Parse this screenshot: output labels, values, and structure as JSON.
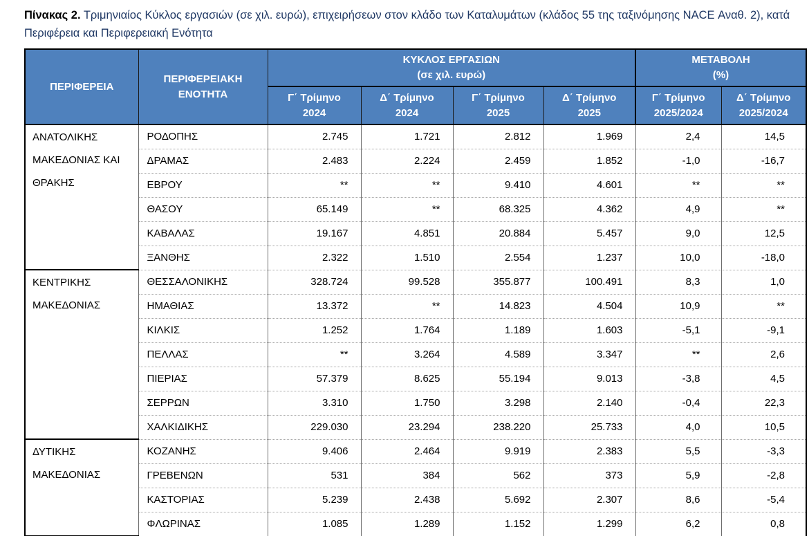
{
  "page": {
    "title_label": "Πίνακας 2.",
    "title_text": " Τριμηνιαίος Κύκλος εργασιών (σε χιλ. ευρώ), επιχειρήσεων στον κλάδο των Καταλυμάτων (κλάδος 55 της ταξινόμησης NACE Αναθ. 2), κατά Περιφέρεια και Περιφερειακή Ενότητα"
  },
  "colors": {
    "header_bg": "#4f81bd",
    "header_text": "#ffffff",
    "title_accent": "#1f3864",
    "outer_border": "#000000",
    "grid_line": "#6e6e6e",
    "row_separator": "#a8a8a8"
  },
  "table": {
    "headers": {
      "region": "ΠΕΡΙΦΕΡΕΙΑ",
      "unit": "ΠΕΡΙΦΕΡΕΙΑΚΗ ΕΝΟΤΗΤΑ",
      "turnover_group": {
        "line1": "ΚΥΚΛΟΣ ΕΡΓΑΣΙΩΝ",
        "line2": "(σε χιλ. ευρώ)"
      },
      "change_group": {
        "line1": "ΜΕΤΑΒΟΛΗ",
        "line2": "(%)"
      },
      "sub": [
        {
          "line1": "Γ΄ Τρίμηνο",
          "line2": "2024"
        },
        {
          "line1": "Δ΄ Τρίμηνο",
          "line2": "2024"
        },
        {
          "line1": "Γ΄ Τρίμηνο",
          "line2": "2025"
        },
        {
          "line1": "Δ΄ Τρίμηνο",
          "line2": "2025"
        },
        {
          "line1": "Γ΄ Τρίμηνο",
          "line2": "2025/2024"
        },
        {
          "line1": "Δ΄ Τρίμηνο",
          "line2": "2025/2024"
        }
      ]
    },
    "groups": [
      {
        "region": "ΑΝΑΤΟΛΙΚΗΣ ΜΑΚΕΔΟΝΙΑΣ ΚΑΙ ΘΡΑΚΗΣ",
        "rows": [
          {
            "unit": "ΡΟΔΟΠΗΣ",
            "values": [
              "2.745",
              "1.721",
              "2.812",
              "1.969",
              "2,4",
              "14,5"
            ]
          },
          {
            "unit": "ΔΡΑΜΑΣ",
            "values": [
              "2.483",
              "2.224",
              "2.459",
              "1.852",
              "-1,0",
              "-16,7"
            ]
          },
          {
            "unit": "ΕΒΡΟΥ",
            "values": [
              "**",
              "**",
              "9.410",
              "4.601",
              "**",
              "**"
            ]
          },
          {
            "unit": "ΘΑΣΟΥ",
            "values": [
              "65.149",
              "**",
              "68.325",
              "4.362",
              "4,9",
              "**"
            ]
          },
          {
            "unit": "ΚΑΒΑΛΑΣ",
            "values": [
              "19.167",
              "4.851",
              "20.884",
              "5.457",
              "9,0",
              "12,5"
            ]
          },
          {
            "unit": "ΞΑΝΘΗΣ",
            "values": [
              "2.322",
              "1.510",
              "2.554",
              "1.237",
              "10,0",
              "-18,0"
            ]
          }
        ]
      },
      {
        "region": "ΚΕΝΤΡΙΚΗΣ ΜΑΚΕΔΟΝΙΑΣ",
        "rows": [
          {
            "unit": "ΘΕΣΣΑΛΟΝΙΚΗΣ",
            "values": [
              "328.724",
              "99.528",
              "355.877",
              "100.491",
              "8,3",
              "1,0"
            ]
          },
          {
            "unit": "ΗΜΑΘΙΑΣ",
            "values": [
              "13.372",
              "**",
              "14.823",
              "4.504",
              "10,9",
              "**"
            ]
          },
          {
            "unit": "ΚΙΛΚΙΣ",
            "values": [
              "1.252",
              "1.764",
              "1.189",
              "1.603",
              "-5,1",
              "-9,1"
            ]
          },
          {
            "unit": "ΠΕΛΛΑΣ",
            "values": [
              "**",
              "3.264",
              "4.589",
              "3.347",
              "**",
              "2,6"
            ]
          },
          {
            "unit": "ΠΙΕΡΙΑΣ",
            "values": [
              "57.379",
              "8.625",
              "55.194",
              "9.013",
              "-3,8",
              "4,5"
            ]
          },
          {
            "unit": "ΣΕΡΡΩΝ",
            "values": [
              "3.310",
              "1.750",
              "3.298",
              "2.140",
              "-0,4",
              "22,3"
            ]
          },
          {
            "unit": "ΧΑΛΚΙΔΙΚΗΣ",
            "values": [
              "229.030",
              "23.294",
              "238.220",
              "25.733",
              "4,0",
              "10,5"
            ]
          }
        ]
      },
      {
        "region": "ΔΥΤΙΚΗΣ ΜΑΚΕΔΟΝΙΑΣ",
        "rows": [
          {
            "unit": "ΚΟΖΑΝΗΣ",
            "values": [
              "9.406",
              "2.464",
              "9.919",
              "2.383",
              "5,5",
              "-3,3"
            ]
          },
          {
            "unit": "ΓΡΕΒΕΝΩΝ",
            "values": [
              "531",
              "384",
              "562",
              "373",
              "5,9",
              "-2,8"
            ]
          },
          {
            "unit": "ΚΑΣΤΟΡΙΑΣ",
            "values": [
              "5.239",
              "2.438",
              "5.692",
              "2.307",
              "8,6",
              "-5,4"
            ]
          },
          {
            "unit": "ΦΛΩΡΙΝΑΣ",
            "values": [
              "1.085",
              "1.289",
              "1.152",
              "1.299",
              "6,2",
              "0,8"
            ]
          }
        ]
      }
    ]
  }
}
